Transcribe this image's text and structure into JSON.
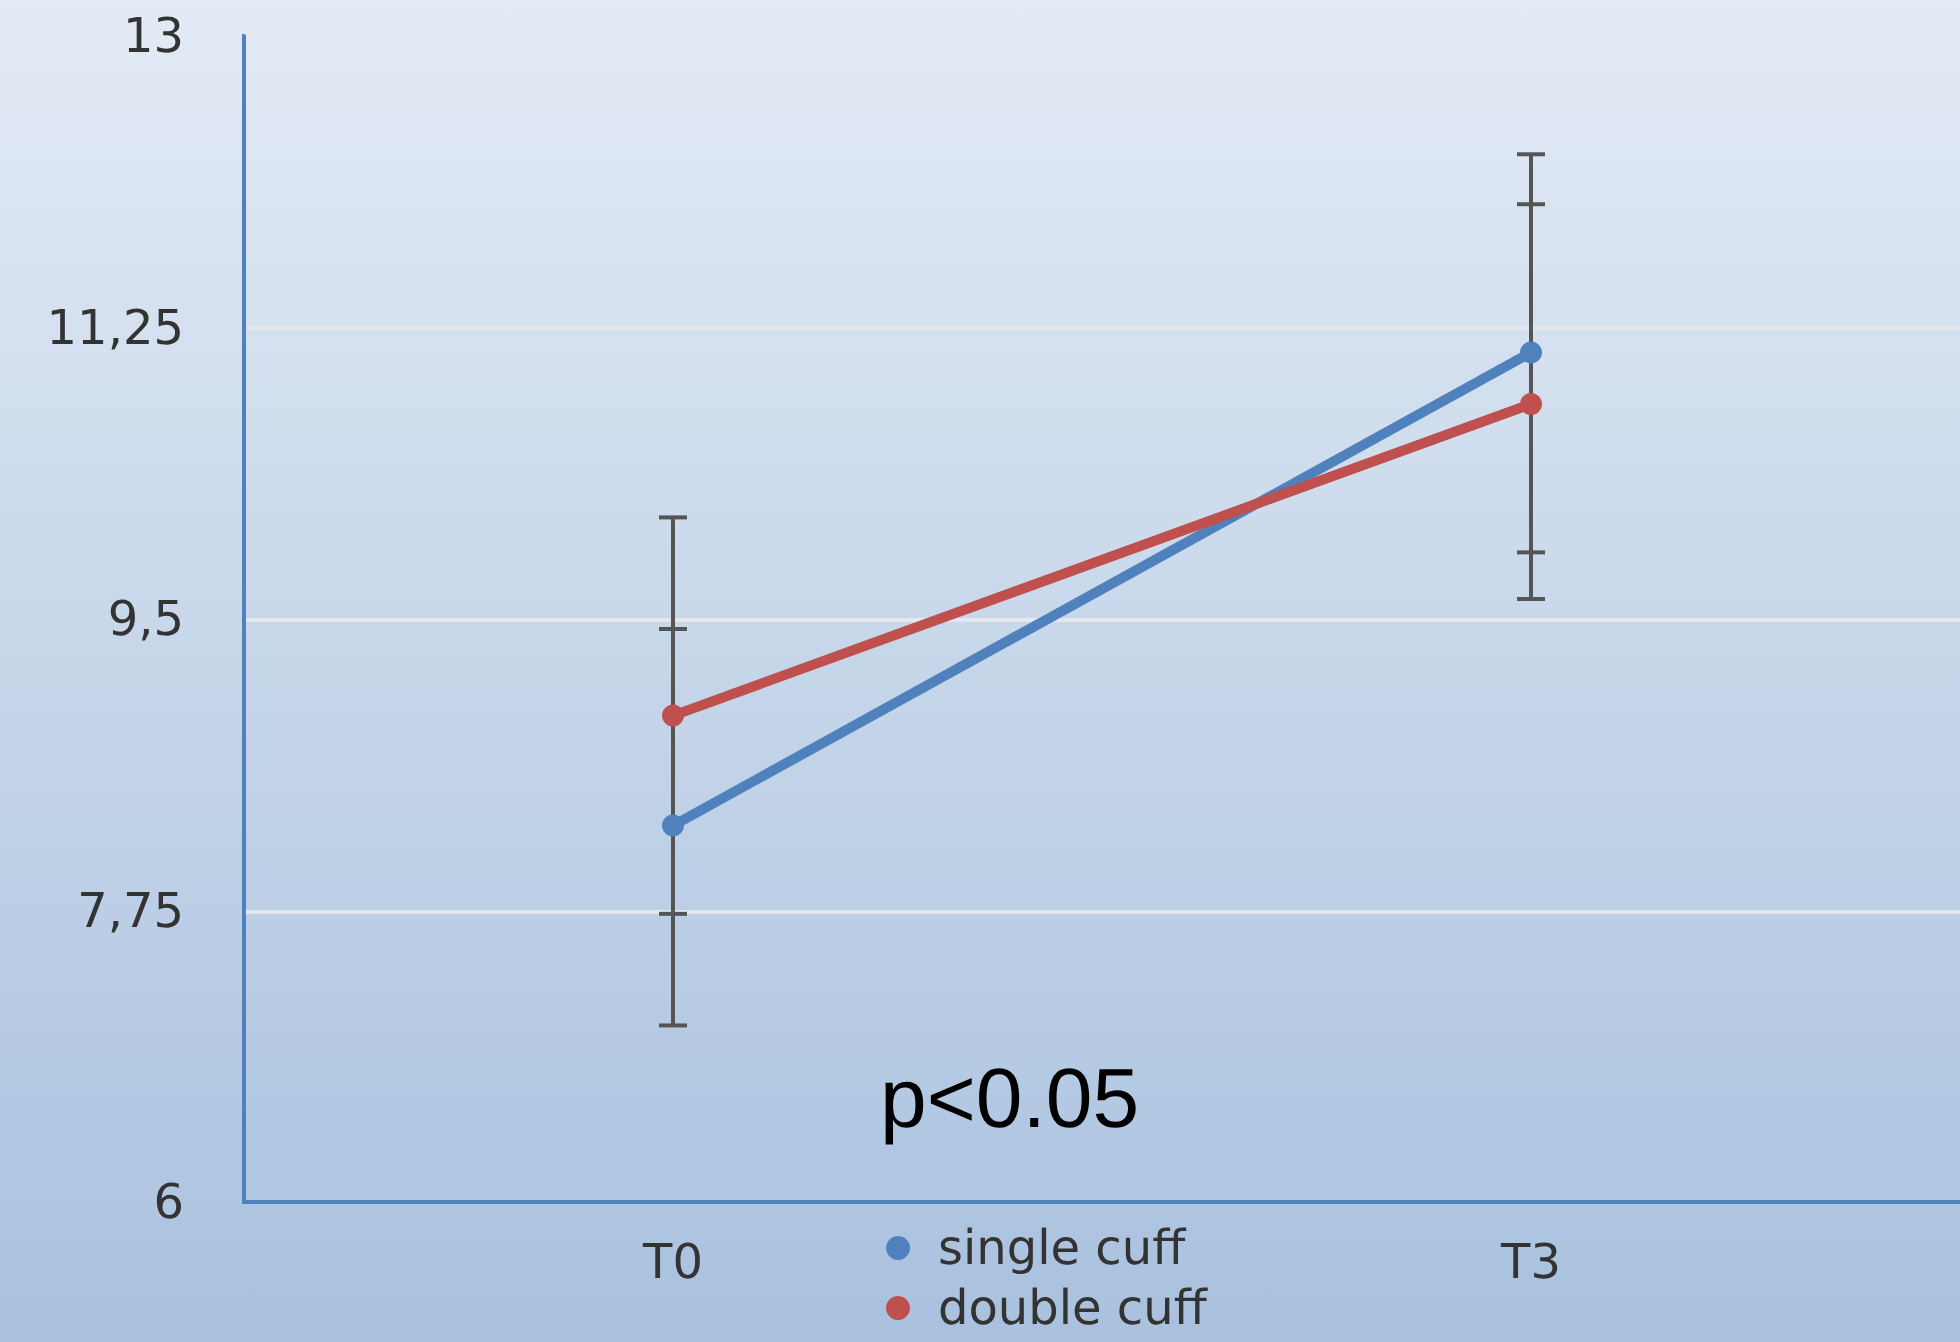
{
  "chart_data": {
    "type": "line",
    "categories": [
      "T0",
      "T3"
    ],
    "series": [
      {
        "name": "single cuff",
        "color": "#4f81bd",
        "values": [
          8.26,
          11.1
        ],
        "errors": [
          [
            7.06,
            10.11
          ],
          [
            9.62,
            12.29
          ]
        ]
      },
      {
        "name": "double cuff",
        "color": "#c0504d",
        "values": [
          8.92,
          10.79
        ],
        "errors": [
          [
            7.73,
            9.44
          ],
          [
            9.9,
            11.99
          ]
        ]
      }
    ],
    "ylim": [
      6,
      13
    ],
    "yticks": [
      6,
      {
        "value": 7.75,
        "label": "7,75"
      },
      {
        "value": 9.5,
        "label": "9,5"
      },
      {
        "value": 11.25,
        "label": "11,25"
      },
      13
    ],
    "annotations": [
      {
        "text": "p<0.05"
      }
    ],
    "grid": "y",
    "legend": "bottom",
    "marker": "circle",
    "line_style": "solid"
  }
}
